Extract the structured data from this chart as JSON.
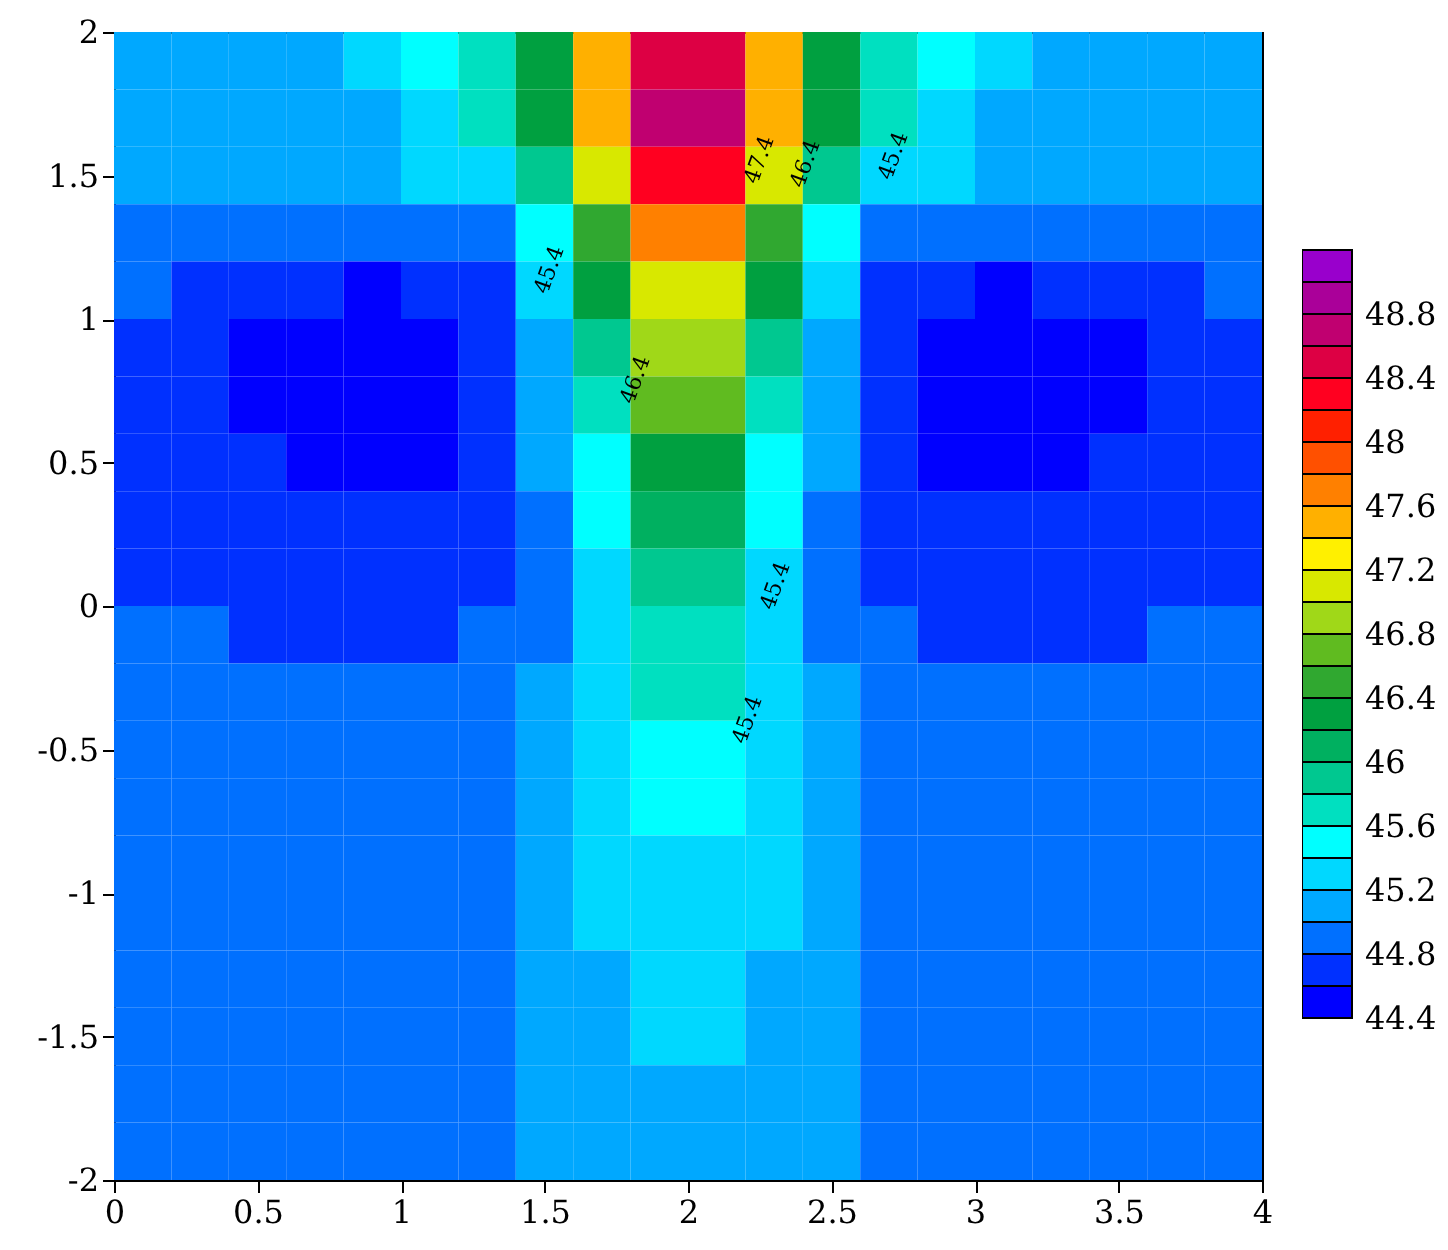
{
  "chart_data": {
    "type": "heatmap",
    "x": [
      0.1,
      0.3,
      0.5,
      0.7,
      0.9,
      1.1,
      1.3,
      1.5,
      1.7,
      1.9,
      2.1,
      2.3,
      2.5,
      2.7,
      2.9,
      3.1,
      3.3,
      3.5,
      3.7,
      3.9
    ],
    "y": [
      1.9,
      1.7,
      1.5,
      1.3,
      1.1,
      0.9,
      0.7,
      0.5,
      0.3,
      0.1,
      -0.1,
      -0.3,
      -0.5,
      -0.7,
      -0.9,
      -1.1,
      -1.3,
      -1.5,
      -1.7,
      -1.9
    ],
    "cells": [
      [
        45.1,
        45.1,
        45.1,
        45.12,
        45.25,
        45.45,
        45.7,
        46.3,
        47.5,
        48.5,
        48.5,
        47.5,
        46.3,
        45.7,
        45.45,
        45.25,
        45.12,
        45.1,
        45.1,
        45.1
      ],
      [
        45.1,
        45.1,
        45.1,
        45.1,
        45.15,
        45.3,
        45.6,
        46.2,
        47.4,
        48.8,
        48.8,
        47.4,
        46.2,
        45.6,
        45.3,
        45.15,
        45.1,
        45.1,
        45.1,
        45.1
      ],
      [
        45.05,
        45.05,
        45.08,
        45.1,
        45.12,
        45.2,
        45.35,
        45.8,
        47.0,
        48.2,
        48.2,
        47.0,
        45.8,
        45.35,
        45.2,
        45.12,
        45.1,
        45.08,
        45.05,
        45.05
      ],
      [
        44.88,
        44.85,
        44.82,
        44.8,
        44.8,
        44.82,
        44.95,
        45.45,
        46.5,
        47.7,
        47.7,
        46.5,
        45.45,
        44.95,
        44.82,
        44.8,
        44.8,
        44.82,
        44.85,
        44.88
      ],
      [
        44.82,
        44.75,
        44.68,
        44.62,
        44.58,
        44.72,
        44.78,
        45.3,
        46.2,
        47.15,
        47.15,
        46.2,
        45.3,
        44.78,
        44.72,
        44.58,
        44.62,
        44.68,
        44.75,
        44.82
      ],
      [
        44.74,
        44.68,
        44.58,
        44.5,
        44.48,
        44.52,
        44.7,
        45.15,
        45.9,
        46.8,
        46.8,
        45.9,
        45.15,
        44.7,
        44.52,
        44.48,
        44.5,
        44.58,
        44.68,
        44.74
      ],
      [
        44.73,
        44.68,
        44.57,
        44.48,
        44.46,
        44.5,
        44.62,
        45.05,
        45.7,
        46.6,
        46.6,
        45.7,
        45.05,
        44.62,
        44.5,
        44.46,
        44.48,
        44.57,
        44.68,
        44.73
      ],
      [
        44.74,
        44.7,
        44.62,
        44.52,
        44.5,
        44.52,
        44.65,
        45.0,
        45.55,
        46.3,
        46.3,
        45.55,
        45.0,
        44.65,
        44.52,
        44.5,
        44.52,
        44.62,
        44.7,
        44.74
      ],
      [
        44.76,
        44.72,
        44.68,
        44.64,
        44.63,
        44.65,
        44.7,
        44.98,
        45.45,
        46.1,
        46.1,
        45.45,
        44.98,
        44.7,
        44.65,
        44.63,
        44.64,
        44.68,
        44.72,
        44.76
      ],
      [
        44.79,
        44.77,
        44.74,
        44.72,
        44.7,
        44.7,
        44.74,
        44.95,
        45.35,
        45.9,
        45.9,
        45.35,
        44.95,
        44.74,
        44.7,
        44.7,
        44.72,
        44.74,
        44.77,
        44.79
      ],
      [
        44.82,
        44.8,
        44.78,
        44.77,
        44.76,
        44.76,
        44.8,
        44.95,
        45.3,
        45.75,
        45.75,
        45.3,
        44.95,
        44.8,
        44.76,
        44.76,
        44.77,
        44.78,
        44.8,
        44.82
      ],
      [
        44.86,
        44.85,
        44.83,
        44.82,
        44.81,
        44.82,
        44.88,
        45.03,
        45.38,
        45.7,
        45.7,
        45.38,
        45.03,
        44.88,
        44.82,
        44.81,
        44.82,
        44.83,
        44.85,
        44.86
      ],
      [
        44.88,
        44.88,
        44.87,
        44.87,
        44.86,
        44.86,
        44.88,
        45.02,
        45.33,
        45.55,
        45.55,
        45.33,
        45.02,
        44.88,
        44.86,
        44.86,
        44.87,
        44.87,
        44.88,
        44.88
      ],
      [
        44.9,
        44.9,
        44.9,
        44.9,
        44.9,
        44.9,
        44.9,
        45.02,
        45.3,
        45.47,
        45.47,
        45.3,
        45.02,
        44.9,
        44.9,
        44.9,
        44.9,
        44.9,
        44.9,
        44.9
      ],
      [
        44.9,
        44.9,
        44.9,
        44.9,
        44.9,
        44.9,
        44.9,
        45.02,
        45.26,
        45.38,
        45.38,
        45.26,
        45.02,
        44.9,
        44.9,
        44.9,
        44.9,
        44.9,
        44.9,
        44.9
      ],
      [
        44.9,
        44.9,
        44.9,
        44.9,
        44.9,
        44.9,
        44.9,
        45.02,
        45.21,
        45.31,
        45.31,
        45.21,
        45.02,
        44.9,
        44.9,
        44.9,
        44.9,
        44.9,
        44.9,
        44.9
      ],
      [
        44.9,
        44.9,
        44.9,
        44.9,
        44.9,
        44.9,
        44.9,
        45.02,
        45.17,
        45.26,
        45.26,
        45.17,
        45.02,
        44.9,
        44.9,
        44.9,
        44.9,
        44.9,
        44.9,
        44.9
      ],
      [
        44.9,
        44.9,
        44.9,
        44.9,
        44.9,
        44.9,
        44.9,
        45.02,
        45.14,
        45.21,
        45.21,
        45.14,
        45.02,
        44.9,
        44.9,
        44.9,
        44.9,
        44.9,
        44.9,
        44.9
      ],
      [
        44.9,
        44.9,
        44.9,
        44.9,
        44.9,
        44.9,
        44.9,
        45.02,
        45.12,
        45.15,
        45.15,
        45.12,
        45.02,
        44.9,
        44.9,
        44.9,
        44.9,
        44.9,
        44.9,
        44.9
      ],
      [
        44.9,
        44.9,
        44.9,
        44.9,
        44.9,
        44.9,
        44.9,
        45.02,
        45.1,
        45.12,
        45.12,
        45.1,
        45.02,
        44.9,
        44.9,
        44.9,
        44.9,
        44.9,
        44.9,
        44.9
      ]
    ],
    "colors": [
      "#0000ff",
      "#0030ff",
      "#0070ff",
      "#00a8ff",
      "#00d8ff",
      "#00ffff",
      "#00e0c0",
      "#00c890",
      "#00b060",
      "#00a040",
      "#30a830",
      "#60bb20",
      "#a0d818",
      "#d8e800",
      "#fff000",
      "#ffb000",
      "#ff8000",
      "#ff5000",
      "#ff2000",
      "#ff0020",
      "#dd0044",
      "#c00070",
      "#aa0099",
      "#9900cc"
    ],
    "clim": [
      44.4,
      49.2
    ],
    "cticks": [
      44.4,
      44.8,
      45.2,
      45.6,
      46,
      46.4,
      46.8,
      47.2,
      47.6,
      48,
      48.4,
      48.8
    ],
    "xlim": [
      0,
      4
    ],
    "xticks": [
      0,
      0.5,
      1,
      1.5,
      2,
      2.5,
      3,
      3.5,
      4
    ],
    "ylim": [
      -2,
      2
    ],
    "yticks": [
      -2,
      -1.5,
      -1,
      -0.5,
      0,
      0.5,
      1,
      1.5,
      2
    ],
    "annotations": [
      "47.4",
      "46.4",
      "45.4",
      "45.4",
      "46.4",
      "45.4",
      "45.4"
    ]
  }
}
